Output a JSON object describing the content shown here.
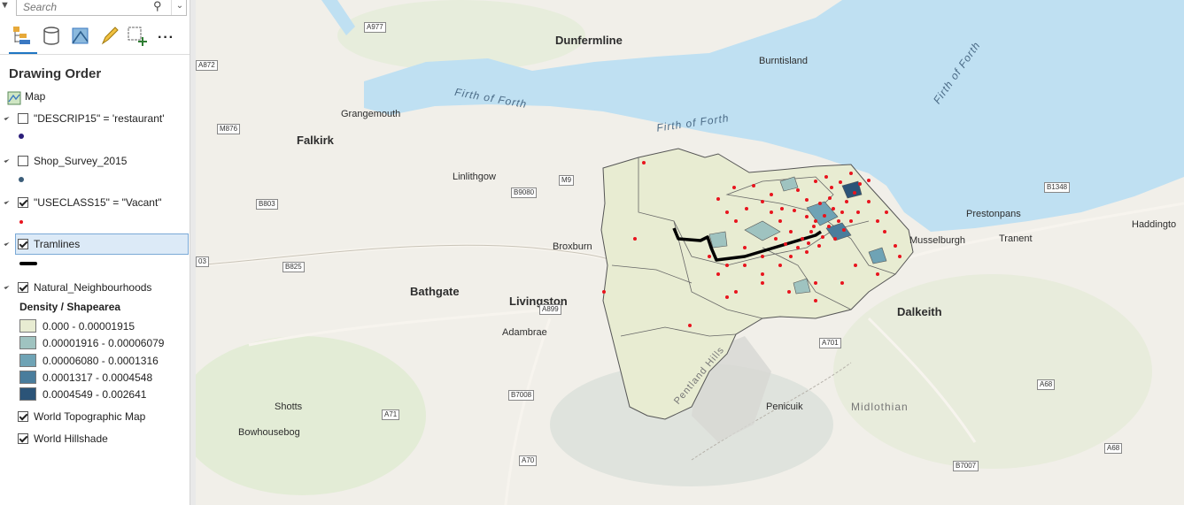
{
  "search": {
    "placeholder": "Search"
  },
  "panel": {
    "title": "Drawing Order"
  },
  "layers": {
    "map": "Map",
    "restaurant": "\"DESCRIP15\" = 'restaurant'",
    "shop_survey": "Shop_Survey_2015",
    "vacant": "\"USECLASS15\" = \"Vacant\"",
    "tramlines": "Tramlines",
    "neighbourhoods": "Natural_Neighbourhoods",
    "topographic": "World Topographic Map",
    "hillshade": "World Hillshade"
  },
  "legend": {
    "heading": "Density / Shapearea",
    "classes": [
      {
        "label": "0.000 - 0.00001915",
        "color": "#e8ecd2"
      },
      {
        "label": "0.00001916 - 0.00006079",
        "color": "#9fc3c0"
      },
      {
        "label": "0.00006080 - 0.0001316",
        "color": "#6fa3b5"
      },
      {
        "label": "0.0001317 - 0.0004548",
        "color": "#4a7d9c"
      },
      {
        "label": "0.0004549 - 0.002641",
        "color": "#2b5478"
      }
    ]
  },
  "map": {
    "water": {
      "firth1": "Firth of Forth",
      "firth2": "Firth of Forth",
      "firth3": "Firth of Forth"
    },
    "towns": {
      "dunfermline": "Dunfermline",
      "burntisland": "Burntisland",
      "grangemouth": "Grangemouth",
      "falkirk": "Falkirk",
      "linlithgow": "Linlithgow",
      "broxburn": "Broxburn",
      "bathgate": "Bathgate",
      "livingston": "Livingston",
      "adambrae": "Adambrae",
      "dalkeith": "Dalkeith",
      "prestonpans": "Prestonpans",
      "tranent": "Tranent",
      "musselburgh": "Musselburgh",
      "haddington": "Haddingto",
      "shotts": "Shotts",
      "bowhousebog": "Bowhousebog",
      "penicuik": "Penicuik",
      "pentland": "Pentland Hills",
      "midlothian": "Midlothian"
    },
    "roads": {
      "a977": "A977",
      "a872": "A872",
      "m876": "M876",
      "b9080": "B9080",
      "m9": "M9",
      "b803": "B803",
      "b825": "B825",
      "a899": "A899",
      "a701": "A701",
      "b7008": "B7008",
      "a71": "A71",
      "a70": "A70",
      "a68": "A68",
      "a68b": "A68",
      "b7007": "B7007",
      "b1348": "B1348",
      "r03": "03"
    }
  },
  "colors": {
    "accent": "#1f76c3",
    "water": "#bfe0f2",
    "point": "#e8141e",
    "tram": "#000000"
  }
}
